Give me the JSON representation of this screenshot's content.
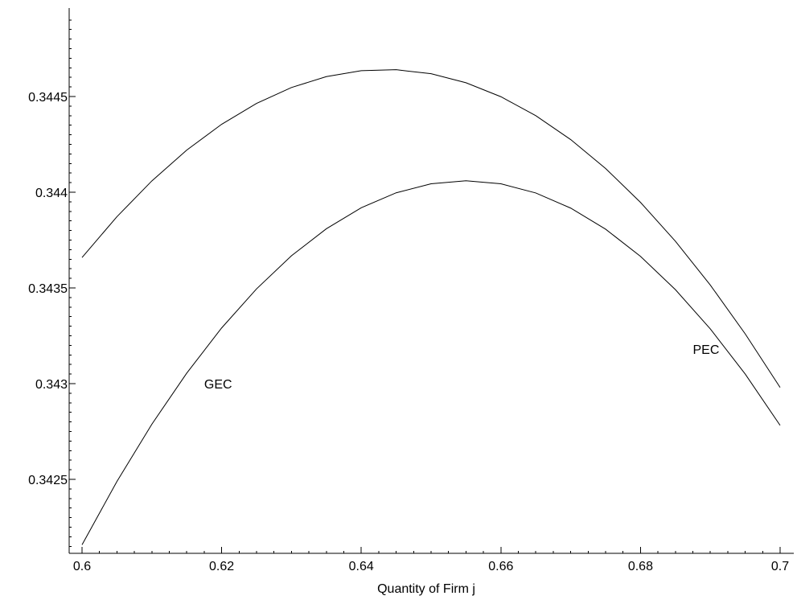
{
  "chart_data": {
    "type": "line",
    "title": "",
    "xlabel": "Quantity of Firm j",
    "ylabel": "",
    "xlim": [
      0.6,
      0.7
    ],
    "ylim": [
      0.34215,
      0.34492
    ],
    "xticks": [
      {
        "value": 0.6,
        "label": "0.6"
      },
      {
        "value": 0.62,
        "label": "0.62"
      },
      {
        "value": 0.64,
        "label": "0.64"
      },
      {
        "value": 0.66,
        "label": "0.66"
      },
      {
        "value": 0.68,
        "label": "0.68"
      },
      {
        "value": 0.7,
        "label": "0.7"
      }
    ],
    "yticks": [
      {
        "value": 0.3425,
        "label": "0.3425"
      },
      {
        "value": 0.343,
        "label": "0.343"
      },
      {
        "value": 0.3435,
        "label": "0.3435"
      },
      {
        "value": 0.344,
        "label": "0.344"
      },
      {
        "value": 0.3445,
        "label": "0.3445"
      }
    ],
    "series": [
      {
        "x": [
          0.6,
          0.605,
          0.61,
          0.615,
          0.62,
          0.625,
          0.63,
          0.635,
          0.64,
          0.645,
          0.65,
          0.655,
          0.66,
          0.665,
          0.67,
          0.675,
          0.68,
          0.685,
          0.69,
          0.695,
          0.7
        ],
        "values": [
          0.343659,
          0.343872,
          0.344059,
          0.34422,
          0.344355,
          0.344464,
          0.344547,
          0.344604,
          0.344635,
          0.34464,
          0.344619,
          0.344572,
          0.344499,
          0.3444,
          0.344275,
          0.344124,
          0.343947,
          0.343744,
          0.343515,
          0.34326,
          0.34298
        ]
      },
      {
        "x": [
          0.6,
          0.605,
          0.61,
          0.615,
          0.62,
          0.625,
          0.63,
          0.635,
          0.64,
          0.645,
          0.65,
          0.655,
          0.66,
          0.665,
          0.67,
          0.675,
          0.68,
          0.685,
          0.69,
          0.695,
          0.7
        ],
        "values": [
          0.342158,
          0.342489,
          0.342788,
          0.343055,
          0.343291,
          0.343495,
          0.343668,
          0.343809,
          0.343919,
          0.343997,
          0.344044,
          0.34406,
          0.344044,
          0.343996,
          0.343917,
          0.343807,
          0.343665,
          0.343491,
          0.343286,
          0.34305,
          0.342782
        ]
      }
    ],
    "annotations": [
      {
        "text": "GEC",
        "x": 0.6175,
        "y": 0.343
      },
      {
        "text": "PEC",
        "x": 0.6875,
        "y": 0.34318
      }
    ],
    "grid": false,
    "legend": "none"
  }
}
